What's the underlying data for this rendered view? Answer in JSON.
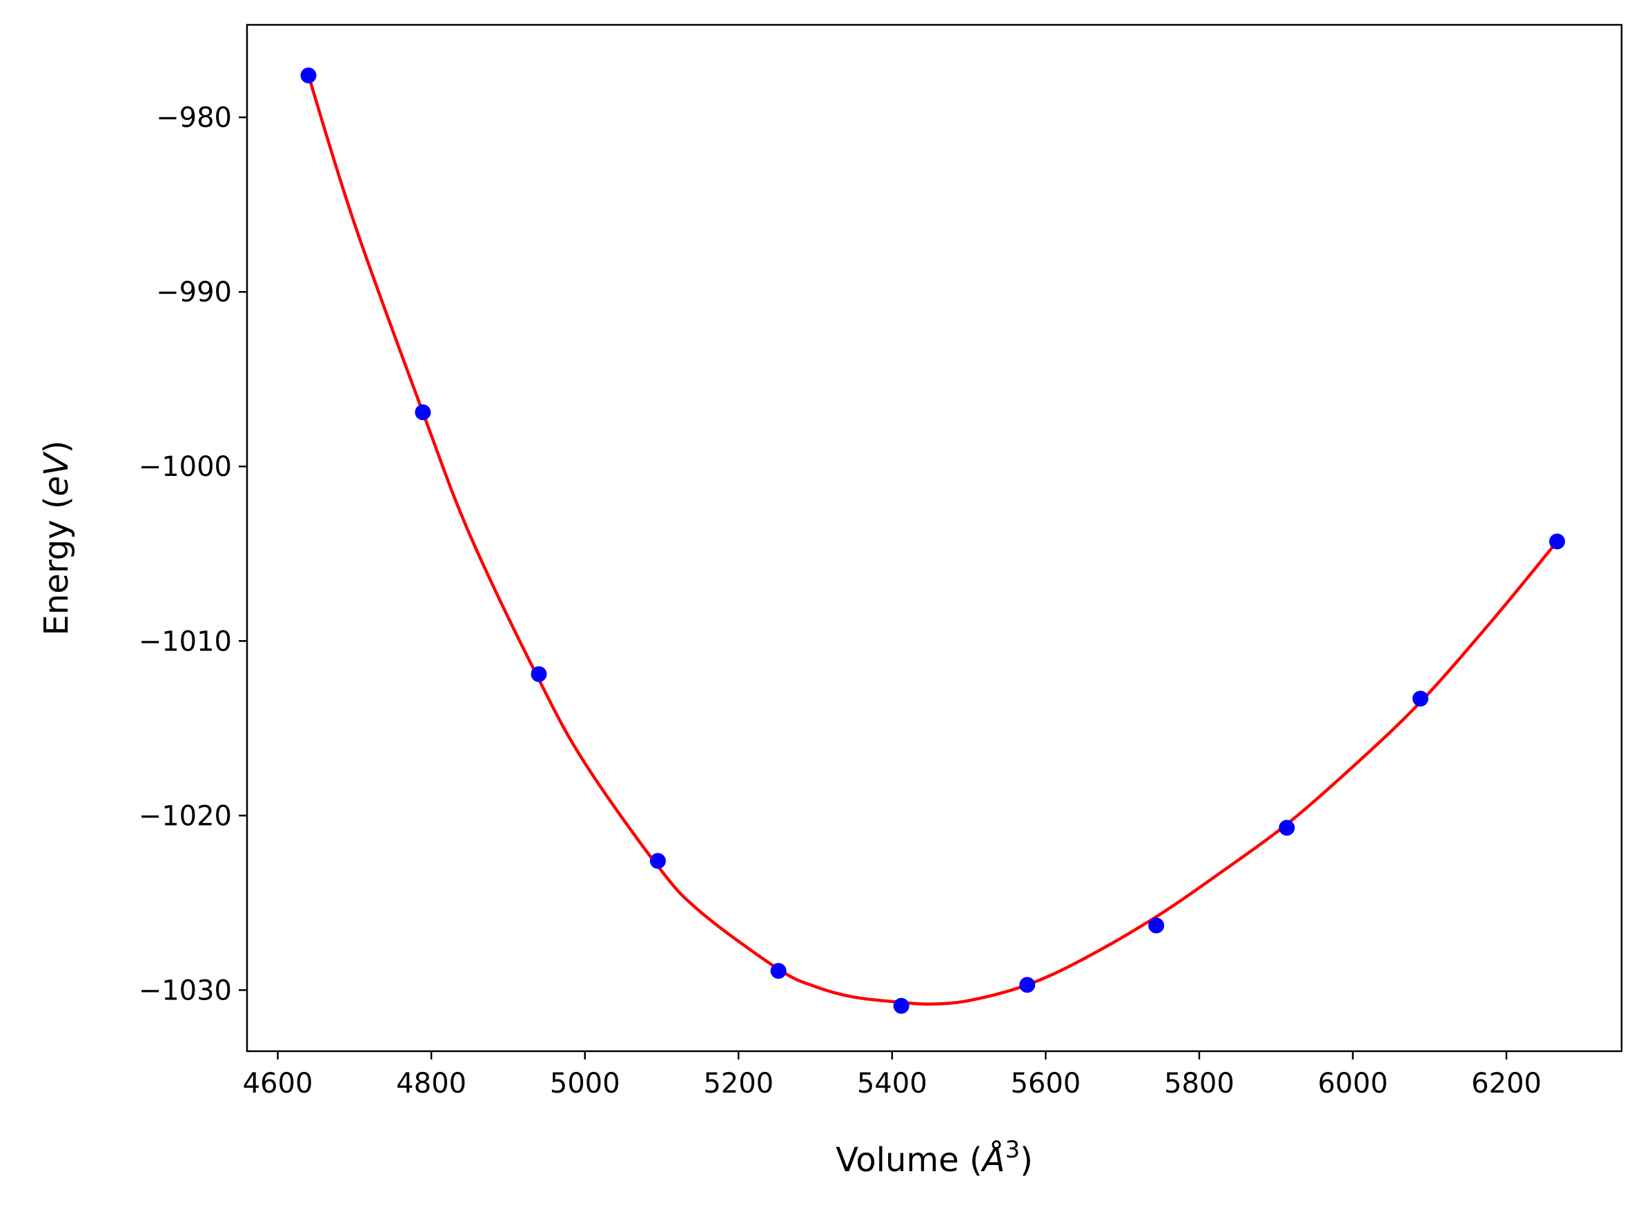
{
  "chart_data": {
    "type": "scatter",
    "title": "",
    "xlabel": "Volume (Å³)",
    "ylabel": "Energy (eV)",
    "xlabel_parts": {
      "prefix": "Volume (",
      "symbol": "Å",
      "sup": "3",
      "suffix": ")"
    },
    "ylabel_parts": {
      "prefix": "Energy (",
      "symbol": "eV",
      "suffix": ")"
    },
    "xlim": [
      4560,
      6350
    ],
    "ylim": [
      -1033.5,
      -974.7
    ],
    "xticks": [
      4600,
      4800,
      5000,
      5200,
      5400,
      5600,
      5800,
      6000,
      6200
    ],
    "xtick_labels": [
      "4600",
      "4800",
      "5000",
      "5200",
      "5400",
      "5600",
      "5800",
      "6000",
      "6200"
    ],
    "yticks": [
      -980,
      -990,
      -1000,
      -1010,
      -1020,
      -1030
    ],
    "ytick_labels": [
      "−980",
      "−990",
      "−1000",
      "−1010",
      "−1020",
      "−1030"
    ],
    "grid": false,
    "legend": "none",
    "series": [
      {
        "kind": "points",
        "color": "#0000ff",
        "x": [
          4640,
          4789,
          4940,
          5095,
          5252,
          5412,
          5576,
          5744,
          5914,
          6088,
          6266
        ],
        "y": [
          -977.6,
          -996.9,
          -1011.9,
          -1022.6,
          -1028.9,
          -1030.9,
          -1029.7,
          -1026.3,
          -1020.7,
          -1013.3,
          -1004.3
        ]
      },
      {
        "kind": "fit-curve",
        "color": "#ff0000",
        "x": [
          4640,
          4700,
          4789,
          4850,
          4940,
          5000,
          5095,
          5150,
          5252,
          5300,
          5350,
          5412,
          5450,
          5500,
          5576,
          5650,
          5744,
          5830,
          5914,
          6000,
          6088,
          6180,
          6266
        ],
        "y": [
          -977.6,
          -986.1,
          -996.9,
          -1003.9,
          -1012.2,
          -1017.0,
          -1022.9,
          -1025.5,
          -1028.8,
          -1029.8,
          -1030.4,
          -1030.7,
          -1030.8,
          -1030.6,
          -1029.7,
          -1028.2,
          -1025.8,
          -1023.2,
          -1020.5,
          -1017.2,
          -1013.5,
          -1008.9,
          -1004.3
        ]
      }
    ]
  }
}
